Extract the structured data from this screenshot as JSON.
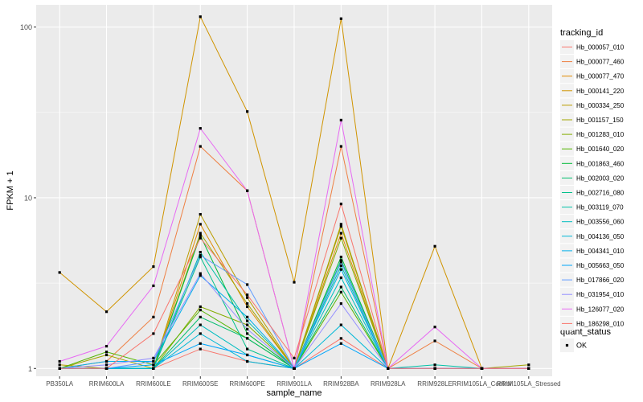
{
  "chart_data": {
    "type": "line",
    "title": "",
    "xlabel": "sample_name",
    "ylabel": "FPKM + 1",
    "y_scale": "log10",
    "ylim": [
      0.9,
      135
    ],
    "y_ticks": [
      1,
      10,
      100
    ],
    "grid": true,
    "legend_position": "right",
    "categories": [
      "PB350LA",
      "RRIM600LA",
      "RRIM600LE",
      "RRIM600SE",
      "RRIM600PE",
      "RRIM901LA",
      "RRIM928BA",
      "RRIM928LA",
      "RRIM928LE",
      "RRIM105LA_Control",
      "RRIM105LA_Stressed"
    ],
    "legend": {
      "title": "tracking_id",
      "shape_title": "quant_status",
      "shape_label": "OK"
    },
    "series": [
      {
        "name": "Hb_000057_010",
        "color": "#F8766D",
        "values": [
          1.0,
          1.0,
          1.0,
          1.3,
          1.1,
          1.0,
          1.5,
          1.0,
          1.0,
          1.0,
          1.0
        ]
      },
      {
        "name": "Hb_000077_460",
        "color": "#EE8043",
        "values": [
          1.0,
          1.1,
          2.0,
          20.0,
          11.0,
          1.0,
          20.0,
          1.0,
          1.45,
          1.0,
          1.0
        ]
      },
      {
        "name": "Hb_000077_470",
        "color": "#E18A00",
        "values": [
          1.0,
          1.0,
          1.0,
          7.0,
          2.3,
          1.0,
          6.2,
          1.0,
          1.0,
          1.0,
          1.0
        ]
      },
      {
        "name": "Hb_000141_220",
        "color": "#D09400",
        "values": [
          3.65,
          2.15,
          3.95,
          115,
          32.0,
          3.2,
          112,
          1.0,
          5.2,
          1.0,
          1.0
        ]
      },
      {
        "name": "Hb_000334_250",
        "color": "#BB9D00",
        "values": [
          1.05,
          1.0,
          1.0,
          8.0,
          2.6,
          1.0,
          7.0,
          1.0,
          1.0,
          1.0,
          1.0
        ]
      },
      {
        "name": "Hb_001157_150",
        "color": "#A3A500",
        "values": [
          1.0,
          1.2,
          1.0,
          6.2,
          2.4,
          1.0,
          6.8,
          1.0,
          1.0,
          1.0,
          1.05
        ]
      },
      {
        "name": "Hb_001283_010",
        "color": "#84AD00",
        "values": [
          1.0,
          1.0,
          1.0,
          2.3,
          1.8,
          1.0,
          5.8,
          1.0,
          1.0,
          1.0,
          1.0
        ]
      },
      {
        "name": "Hb_001640_020",
        "color": "#53B400",
        "values": [
          1.0,
          1.25,
          1.05,
          2.2,
          1.5,
          1.0,
          2.8,
          1.0,
          1.0,
          1.0,
          1.0
        ]
      },
      {
        "name": "Hb_001863_460",
        "color": "#00BA38",
        "values": [
          1.0,
          1.0,
          1.0,
          6.0,
          1.6,
          1.0,
          4.5,
          1.0,
          1.0,
          1.0,
          1.0
        ]
      },
      {
        "name": "Hb_002003_020",
        "color": "#00BE6C",
        "values": [
          1.0,
          1.0,
          1.0,
          2.0,
          1.5,
          1.0,
          3.0,
          1.0,
          1.0,
          1.0,
          1.0
        ]
      },
      {
        "name": "Hb_002716_080",
        "color": "#00C08B",
        "values": [
          1.0,
          1.0,
          1.0,
          4.5,
          1.3,
          1.0,
          4.3,
          1.0,
          1.0,
          1.0,
          1.0
        ]
      },
      {
        "name": "Hb_003119_070",
        "color": "#00C0A7",
        "values": [
          1.0,
          1.0,
          1.0,
          4.8,
          1.9,
          1.0,
          4.0,
          1.0,
          1.05,
          1.0,
          1.0
        ]
      },
      {
        "name": "Hb_003556_060",
        "color": "#00BDC0",
        "values": [
          1.0,
          1.0,
          1.0,
          1.8,
          1.2,
          1.0,
          3.4,
          1.0,
          1.0,
          1.0,
          1.0
        ]
      },
      {
        "name": "Hb_004136_050",
        "color": "#00B8D7",
        "values": [
          1.0,
          1.0,
          1.0,
          1.6,
          1.1,
          1.0,
          1.8,
          1.0,
          1.0,
          1.0,
          1.0
        ]
      },
      {
        "name": "Hb_004341_010",
        "color": "#00B0EA",
        "values": [
          1.0,
          1.1,
          1.1,
          3.5,
          2.0,
          1.0,
          3.8,
          1.0,
          1.0,
          1.0,
          1.0
        ]
      },
      {
        "name": "Hb_005663_050",
        "color": "#00A5FB",
        "values": [
          1.0,
          1.0,
          1.05,
          1.4,
          1.2,
          1.0,
          1.4,
          1.0,
          1.0,
          1.0,
          1.0
        ]
      },
      {
        "name": "Hb_017866_020",
        "color": "#619CFF",
        "values": [
          1.0,
          1.0,
          1.1,
          4.6,
          3.1,
          1.0,
          4.2,
          1.0,
          1.0,
          1.0,
          1.0
        ]
      },
      {
        "name": "Hb_031954_010",
        "color": "#9590FF",
        "values": [
          1.0,
          1.05,
          1.15,
          3.6,
          1.7,
          1.0,
          2.4,
          1.0,
          1.0,
          1.0,
          1.0
        ]
      },
      {
        "name": "Hb_126077_020",
        "color": "#E76BF3",
        "values": [
          1.1,
          1.35,
          3.05,
          25.5,
          11.0,
          1.0,
          28.5,
          1.0,
          1.75,
          1.0,
          1.0
        ]
      },
      {
        "name": "Hb_186298_010",
        "color": "#F8766D",
        "values": [
          1.0,
          1.0,
          1.6,
          5.8,
          2.7,
          1.15,
          9.2,
          1.0,
          1.0,
          1.0,
          1.0
        ]
      }
    ]
  }
}
